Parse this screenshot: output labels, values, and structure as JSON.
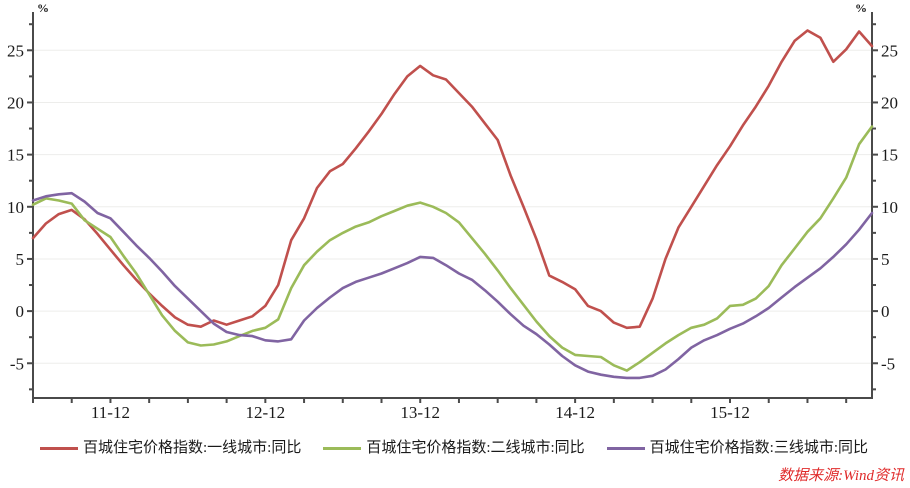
{
  "chart_data": {
    "type": "line",
    "title": "",
    "unit_label_left": "%",
    "unit_label_right": "%",
    "grid": true,
    "legend_position": "bottom",
    "x_months": [
      "2011-06",
      "2011-07",
      "2011-08",
      "2011-09",
      "2011-10",
      "2011-11",
      "2011-12",
      "2012-01",
      "2012-02",
      "2012-03",
      "2012-04",
      "2012-05",
      "2012-06",
      "2012-07",
      "2012-08",
      "2012-09",
      "2012-10",
      "2012-11",
      "2012-12",
      "2013-01",
      "2013-02",
      "2013-03",
      "2013-04",
      "2013-05",
      "2013-06",
      "2013-07",
      "2013-08",
      "2013-09",
      "2013-10",
      "2013-11",
      "2013-12",
      "2014-01",
      "2014-02",
      "2014-03",
      "2014-04",
      "2014-05",
      "2014-06",
      "2014-07",
      "2014-08",
      "2014-09",
      "2014-10",
      "2014-11",
      "2014-12",
      "2015-01",
      "2015-02",
      "2015-03",
      "2015-04",
      "2015-05",
      "2015-06",
      "2015-07",
      "2015-08",
      "2015-09",
      "2015-10",
      "2015-11",
      "2015-12",
      "2016-01",
      "2016-02",
      "2016-03",
      "2016-04",
      "2016-05",
      "2016-06",
      "2016-07",
      "2016-08",
      "2016-09",
      "2016-10",
      "2016-11"
    ],
    "x_tick_labels": [
      "11-12",
      "12-12",
      "13-12",
      "14-12",
      "15-12"
    ],
    "x_tick_month_indices": [
      6,
      18,
      30,
      42,
      54
    ],
    "x_minor_tick_step_months": 3,
    "y_axis": {
      "min": -8.33,
      "max": 28,
      "label_ticks": [
        -5,
        0,
        5,
        10,
        15,
        20,
        25
      ],
      "minor_tick_step": 2.5
    },
    "series": [
      {
        "name": "百城住宅价格指数:一线城市:同比",
        "color": "#C0504D",
        "values": [
          7.0,
          8.4,
          9.3,
          9.7,
          8.8,
          7.4,
          5.9,
          4.4,
          3.0,
          1.7,
          0.5,
          -0.6,
          -1.3,
          -1.5,
          -0.9,
          -1.3,
          -0.9,
          -0.5,
          0.5,
          2.5,
          6.8,
          8.9,
          11.8,
          13.4,
          14.1,
          15.6,
          17.2,
          18.9,
          20.8,
          22.5,
          23.5,
          22.6,
          22.2,
          20.9,
          19.6,
          18.0,
          16.4,
          13.0,
          10.0,
          6.9,
          3.4,
          2.8,
          2.1,
          0.5,
          0.0,
          -1.1,
          -1.6,
          -1.5,
          1.2,
          5.0,
          8.0,
          10.0,
          12.0,
          14.0,
          15.8,
          17.8,
          19.6,
          21.6,
          23.9,
          25.9,
          26.9,
          26.2,
          23.9,
          25.1,
          26.8,
          25.4
        ]
      },
      {
        "name": "百城住宅价格指数:二线城市:同比",
        "color": "#9BBB59",
        "values": [
          10.2,
          10.8,
          10.6,
          10.3,
          8.7,
          7.9,
          7.1,
          5.3,
          3.6,
          1.6,
          -0.4,
          -1.9,
          -3.0,
          -3.3,
          -3.2,
          -2.9,
          -2.4,
          -1.9,
          -1.6,
          -0.8,
          2.2,
          4.4,
          5.7,
          6.8,
          7.5,
          8.1,
          8.5,
          9.1,
          9.6,
          10.1,
          10.4,
          10.0,
          9.4,
          8.5,
          7.0,
          5.5,
          3.9,
          2.2,
          0.6,
          -1.0,
          -2.4,
          -3.5,
          -4.2,
          -4.3,
          -4.4,
          -5.2,
          -5.7,
          -4.9,
          -4.0,
          -3.1,
          -2.3,
          -1.6,
          -1.3,
          -0.7,
          0.5,
          0.6,
          1.2,
          2.4,
          4.4,
          6.0,
          7.6,
          8.9,
          10.8,
          12.8,
          16.0,
          17.7
        ]
      },
      {
        "name": "百城住宅价格指数:三线城市:同比",
        "color": "#8064A2",
        "values": [
          10.6,
          11.0,
          11.2,
          11.3,
          10.5,
          9.4,
          8.9,
          7.6,
          6.3,
          5.1,
          3.8,
          2.4,
          1.2,
          0.0,
          -1.2,
          -2.0,
          -2.3,
          -2.4,
          -2.8,
          -2.9,
          -2.7,
          -0.9,
          0.3,
          1.3,
          2.2,
          2.8,
          3.2,
          3.6,
          4.1,
          4.6,
          5.2,
          5.1,
          4.4,
          3.6,
          3.0,
          2.0,
          0.9,
          -0.3,
          -1.4,
          -2.2,
          -3.2,
          -4.3,
          -5.2,
          -5.8,
          -6.1,
          -6.3,
          -6.4,
          -6.4,
          -6.2,
          -5.6,
          -4.6,
          -3.5,
          -2.8,
          -2.3,
          -1.7,
          -1.2,
          -0.5,
          0.3,
          1.3,
          2.3,
          3.2,
          4.1,
          5.2,
          6.4,
          7.8,
          9.4
        ]
      }
    ]
  },
  "watermark": {
    "text": "数据来源:Wind资讯",
    "color": "#E02B2B"
  },
  "style_colors": {
    "axis": "#4A4A4A",
    "gridline": "#EDEDEB",
    "tick_label": "#1A1A1A"
  }
}
